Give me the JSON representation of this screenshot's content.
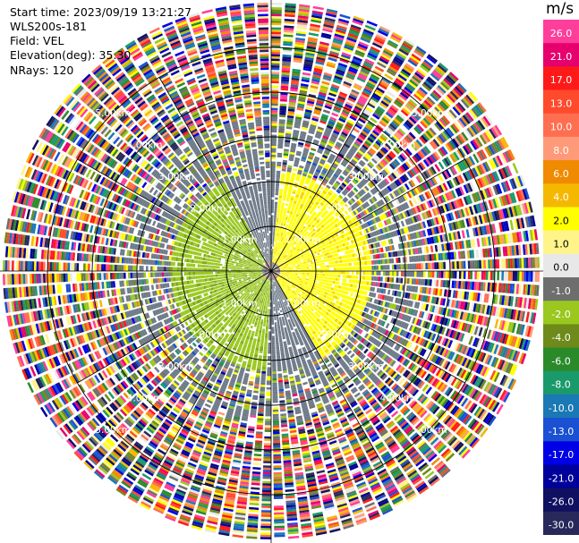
{
  "header": {
    "start_time": "Start time: 2023/09/19 13:21:27",
    "station": "WLS200s-181",
    "field": "Field: VEL",
    "elevation": "Elevation(deg): 35.30",
    "nrays": "NRays: 120"
  },
  "chart_data": {
    "type": "heatmap",
    "projection": "polar-ppi",
    "field": "VEL",
    "unit": "m/s",
    "nrays": 120,
    "elevation_deg": 35.3,
    "max_range_km": 6.0,
    "range_rings_km": [
      1,
      2,
      3,
      4,
      5
    ],
    "ring_labels": [
      "1.00km",
      "2.00km",
      "3.00km",
      "4.00km",
      "5.00km"
    ],
    "colorbar": {
      "ticks": [
        "26.0",
        "21.0",
        "17.0",
        "13.0",
        "10.0",
        "8.0",
        "6.0",
        "4.0",
        "2.0",
        "1.0",
        "0.0",
        "-1.0",
        "-2.0",
        "-4.0",
        "-6.0",
        "-8.0",
        "-10.0",
        "-13.0",
        "-17.0",
        "-21.0",
        "-26.0",
        "-30.0"
      ],
      "colors": [
        "#ff3d9a",
        "#e6006e",
        "#ff1a1a",
        "#ff4a2c",
        "#ff6e50",
        "#ff9a78",
        "#f08a00",
        "#f5b800",
        "#ffff00",
        "#fff48a",
        "#e8e8e8",
        "#6e6e6e",
        "#9ac81e",
        "#6e8a1a",
        "#2a8a2a",
        "#1a9a6a",
        "#1a78b4",
        "#1a50d2",
        "#0000e6",
        "#00009a",
        "#101060",
        "#28285a"
      ]
    }
  }
}
